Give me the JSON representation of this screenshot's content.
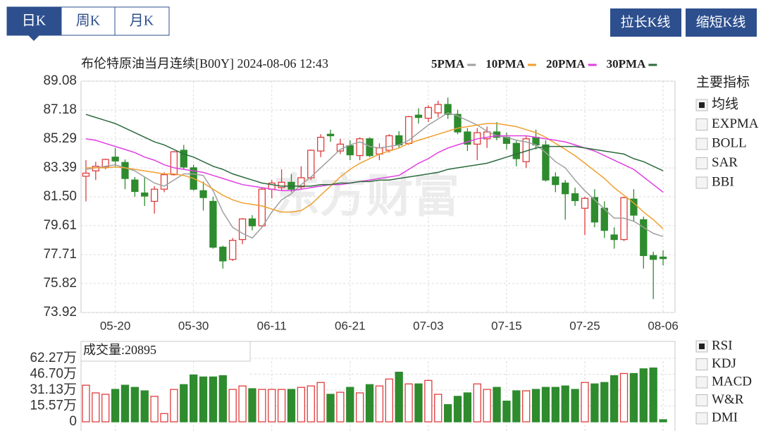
{
  "tabs": [
    "日K",
    "周K",
    "月K"
  ],
  "buttons": [
    "拉长K线",
    "缩短K线"
  ],
  "watermark": "东方财富",
  "main_indicators": {
    "title": "主要指标",
    "items": [
      {
        "label": "均线",
        "checked": true
      },
      {
        "label": "EXPMA",
        "checked": false
      },
      {
        "label": "BOLL",
        "checked": false
      },
      {
        "label": "SAR",
        "checked": false
      },
      {
        "label": "BBI",
        "checked": false
      }
    ]
  },
  "sub_indicators": {
    "items": [
      {
        "label": "RSI",
        "checked": true
      },
      {
        "label": "KDJ",
        "checked": false
      },
      {
        "label": "MACD",
        "checked": false
      },
      {
        "label": "W&R",
        "checked": false
      },
      {
        "label": "DMI",
        "checked": false
      }
    ]
  },
  "chart_data": [
    {
      "type": "candlestick",
      "title": "布伦特原油当月连续[B00Y] 2024-08-06 12:43",
      "categories": [
        null,
        null,
        null,
        "05-20",
        null,
        null,
        null,
        null,
        null,
        null,
        null,
        "05-30",
        null,
        null,
        null,
        null,
        null,
        null,
        null,
        "06-11",
        null,
        null,
        null,
        null,
        null,
        null,
        null,
        "06-21",
        null,
        null,
        null,
        null,
        null,
        null,
        null,
        "07-03",
        null,
        null,
        null,
        null,
        null,
        null,
        null,
        "07-15",
        null,
        null,
        null,
        null,
        null,
        null,
        null,
        "07-25",
        null,
        null,
        null,
        null,
        null,
        null,
        null,
        "08-06"
      ],
      "open": [
        82.85,
        83.2,
        83.45,
        84.1,
        83.75,
        82.6,
        81.75,
        81.2,
        82.0,
        82.95,
        84.55,
        83.4,
        81.9,
        81.2,
        78.2,
        77.4,
        78.7,
        80.05,
        79.6,
        82.0,
        82.1,
        82.45,
        82.15,
        82.75,
        84.5,
        85.6,
        84.5,
        84.85,
        84.2,
        85.3,
        84.3,
        84.55,
        85.5,
        85.0,
        86.85,
        86.65,
        87.0,
        87.55,
        86.9,
        85.75,
        84.95,
        85.3,
        85.75,
        85.4,
        85.0,
        83.8,
        85.4,
        84.9,
        82.8,
        82.4,
        81.7,
        80.75,
        81.45,
        80.75,
        79.0,
        78.7,
        81.35,
        80.0,
        77.65,
        77.55
      ],
      "high": [
        83.9,
        83.8,
        84.0,
        84.7,
        83.95,
        82.8,
        82.8,
        82.2,
        83.1,
        84.5,
        84.9,
        83.6,
        82.5,
        81.5,
        78.3,
        78.8,
        80.1,
        80.3,
        82.1,
        82.6,
        83.3,
        83.0,
        83.5,
        84.6,
        85.6,
        85.9,
        85.3,
        85.2,
        85.4,
        85.4,
        85.0,
        85.6,
        85.8,
        86.8,
        87.3,
        87.5,
        87.8,
        88.0,
        87.2,
        86.0,
        86.0,
        86.1,
        86.4,
        85.7,
        85.2,
        85.5,
        85.9,
        85.2,
        83.1,
        82.6,
        82.1,
        81.5,
        82.0,
        81.2,
        79.5,
        81.5,
        82.0,
        80.2,
        77.9,
        78.0
      ],
      "low": [
        81.2,
        82.6,
        83.3,
        83.5,
        82.0,
        81.5,
        80.9,
        80.4,
        81.8,
        82.9,
        83.3,
        81.9,
        80.6,
        78.1,
        76.8,
        77.3,
        78.4,
        79.3,
        79.5,
        81.4,
        81.9,
        81.8,
        82.0,
        82.6,
        84.1,
        85.1,
        84.3,
        83.9,
        83.9,
        84.1,
        83.9,
        84.4,
        84.7,
        84.9,
        86.3,
        86.4,
        86.7,
        86.6,
        85.6,
        84.5,
        83.9,
        84.7,
        85.2,
        84.6,
        83.5,
        83.4,
        84.6,
        82.5,
        81.8,
        80.0,
        80.9,
        79.0,
        79.5,
        78.8,
        78.1,
        78.6,
        79.9,
        76.8,
        74.8,
        77.0
      ],
      "close": [
        83.05,
        83.5,
        83.95,
        83.85,
        82.7,
        81.85,
        81.55,
        82.0,
        82.95,
        84.45,
        83.45,
        82.0,
        81.45,
        78.2,
        77.3,
        78.65,
        80.05,
        79.6,
        82.0,
        82.4,
        82.45,
        82.0,
        82.75,
        84.55,
        85.4,
        85.5,
        84.95,
        84.25,
        85.3,
        84.2,
        84.7,
        85.5,
        84.9,
        86.75,
        86.7,
        87.35,
        87.55,
        86.9,
        85.75,
        84.95,
        85.7,
        85.75,
        85.4,
        85.0,
        84.0,
        85.3,
        84.9,
        82.6,
        82.3,
        81.7,
        81.25,
        81.4,
        79.85,
        79.3,
        78.7,
        81.45,
        80.3,
        77.65,
        77.4,
        77.45
      ],
      "up_color": "#e03c3c",
      "down_color": "#2e8b2e",
      "series": [
        {
          "name": "5PMA",
          "color": "#a0a0a0",
          "values": [
            83.3,
            83.4,
            83.5,
            83.6,
            83.4,
            83.2,
            82.8,
            82.4,
            82.2,
            82.6,
            83.0,
            83.0,
            82.9,
            81.9,
            80.5,
            79.5,
            79.1,
            78.8,
            79.5,
            80.5,
            81.3,
            81.7,
            82.3,
            82.8,
            83.4,
            84.0,
            84.6,
            84.9,
            85.1,
            84.8,
            84.7,
            84.8,
            84.9,
            85.2,
            85.7,
            86.2,
            86.6,
            87.0,
            86.8,
            86.5,
            86.2,
            85.8,
            85.5,
            85.4,
            85.2,
            85.1,
            84.9,
            84.4,
            83.8,
            83.4,
            82.6,
            81.9,
            81.3,
            80.7,
            80.1,
            80.1,
            79.9,
            79.5,
            79.1,
            78.9
          ]
        },
        {
          "name": "10PMA",
          "color": "#f0a030",
          "values": [
            83.4,
            83.4,
            83.4,
            83.45,
            83.4,
            83.3,
            83.2,
            83.1,
            83.0,
            83.0,
            82.9,
            82.7,
            82.4,
            82.0,
            81.6,
            81.3,
            81.1,
            81.0,
            80.9,
            80.7,
            80.5,
            80.5,
            80.6,
            81.0,
            81.6,
            82.2,
            82.8,
            83.3,
            83.7,
            84.0,
            84.3,
            84.5,
            84.7,
            85.0,
            85.2,
            85.4,
            85.6,
            85.8,
            86.0,
            86.1,
            86.2,
            86.3,
            86.3,
            86.2,
            86.1,
            85.9,
            85.7,
            85.4,
            85.0,
            84.6,
            84.2,
            83.7,
            83.2,
            82.7,
            82.1,
            81.6,
            81.1,
            80.5,
            80.0,
            79.4
          ]
        },
        {
          "name": "20PMA",
          "color": "#e040e0",
          "values": [
            85.3,
            85.2,
            85.0,
            84.8,
            84.6,
            84.4,
            84.1,
            83.9,
            83.6,
            83.4,
            83.3,
            83.2,
            83.1,
            82.9,
            82.7,
            82.5,
            82.3,
            82.2,
            82.1,
            82.0,
            81.9,
            81.9,
            82.0,
            82.1,
            82.2,
            82.3,
            82.3,
            82.4,
            82.5,
            82.6,
            82.7,
            82.8,
            82.9,
            83.3,
            83.7,
            84.0,
            84.4,
            84.7,
            84.9,
            85.1,
            85.3,
            85.4,
            85.5,
            85.5,
            85.5,
            85.5,
            85.4,
            85.3,
            85.2,
            85.1,
            84.9,
            84.7,
            84.5,
            84.2,
            83.9,
            83.6,
            83.3,
            82.8,
            82.3,
            81.8
          ]
        },
        {
          "name": "30PMA",
          "color": "#2e6b3e",
          "values": [
            86.9,
            86.7,
            86.5,
            86.3,
            86.0,
            85.7,
            85.4,
            85.1,
            84.9,
            84.6,
            84.3,
            84.1,
            83.8,
            83.5,
            83.3,
            83.0,
            82.8,
            82.6,
            82.4,
            82.3,
            82.2,
            82.2,
            82.2,
            82.2,
            82.3,
            82.3,
            82.4,
            82.4,
            82.5,
            82.5,
            82.6,
            82.6,
            82.7,
            82.8,
            82.9,
            83.0,
            83.1,
            83.3,
            83.4,
            83.5,
            83.6,
            83.7,
            83.9,
            84.1,
            84.3,
            84.5,
            84.7,
            84.8,
            84.8,
            84.8,
            84.8,
            84.7,
            84.6,
            84.5,
            84.4,
            84.3,
            84.0,
            83.8,
            83.5,
            83.2
          ]
        }
      ],
      "ylim": [
        73.92,
        89.08
      ],
      "yticks": [
        89.08,
        87.18,
        85.29,
        83.39,
        {
          "value": 81.5,
          "label": "81.50"
        },
        79.61,
        77.71,
        75.82,
        73.92
      ],
      "grid": true
    },
    {
      "type": "bar",
      "title": "成交量:20895",
      "values": [
        35.9,
        28.4,
        27.0,
        31.8,
        35.9,
        33.8,
        30.4,
        25.0,
        8.1,
        31.8,
        36.5,
        46.0,
        44.0,
        44.0,
        45.3,
        31.8,
        35.2,
        32.5,
        31.8,
        31.8,
        31.8,
        31.8,
        33.8,
        35.2,
        38.6,
        27.0,
        29.0,
        33.8,
        28.4,
        36.5,
        35.2,
        42.0,
        48.7,
        37.2,
        37.2,
        40.6,
        27.0,
        16.9,
        25.0,
        28.4,
        37.2,
        31.8,
        33.8,
        20.3,
        30.4,
        30.4,
        31.8,
        33.8,
        33.8,
        35.2,
        31.8,
        38.6,
        37.2,
        38.6,
        45.3,
        47.4,
        47.4,
        52.0,
        52.8,
        2.0895
      ],
      "ylim": [
        0,
        62.27
      ],
      "yticks": [
        {
          "value": 0,
          "label": "0"
        },
        {
          "value": 15.57,
          "label": "15.57万"
        },
        {
          "value": 31.13,
          "label": "31.13万"
        },
        {
          "value": 46.7,
          "label": "46.70万"
        },
        {
          "value": 62.27,
          "label": "62.27万"
        }
      ],
      "grid": true
    }
  ]
}
